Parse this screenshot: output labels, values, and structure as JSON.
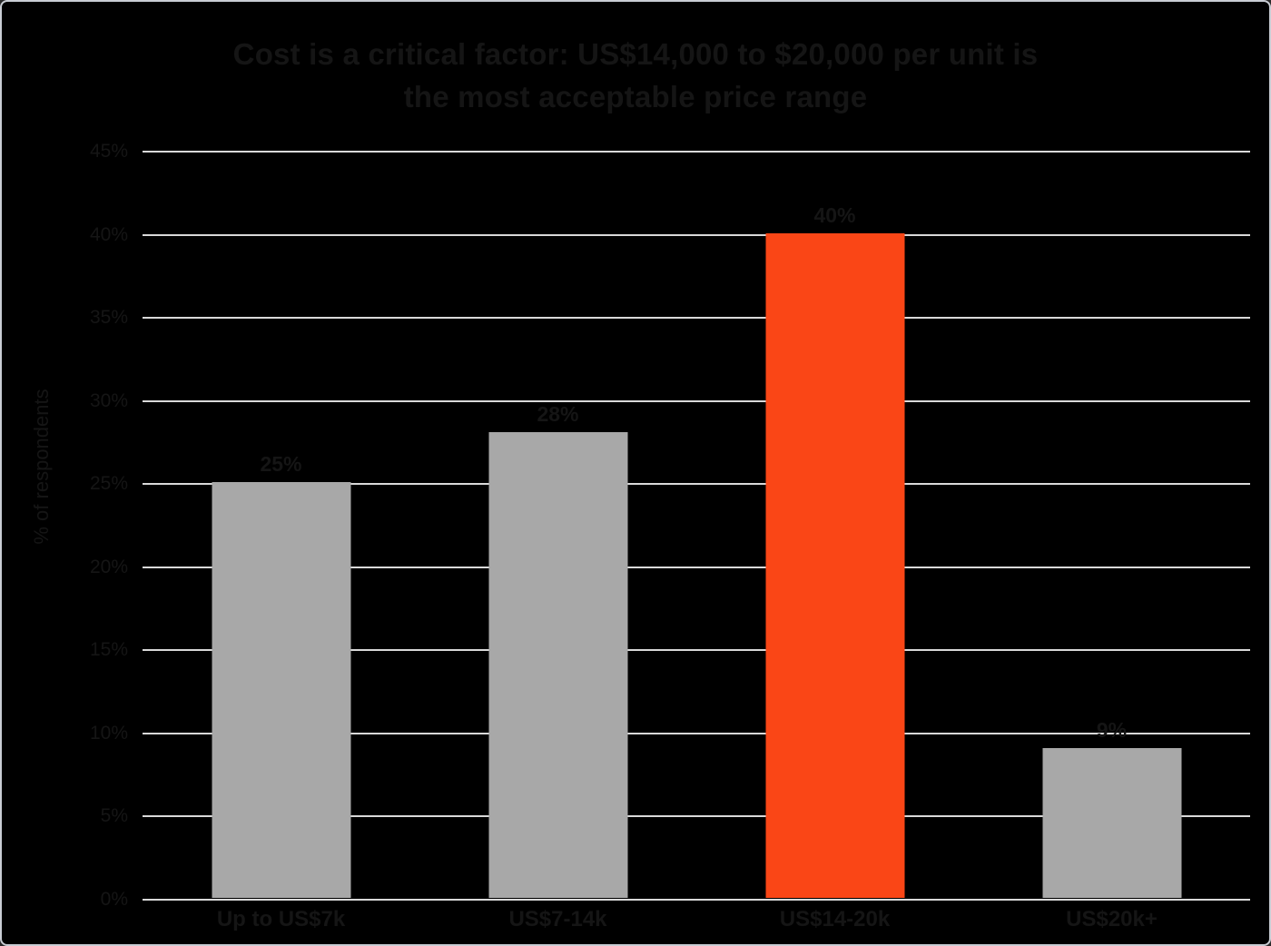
{
  "chart": {
    "title_line1": "Cost is a critical factor: US$14,000 to $20,000 per unit is",
    "title_line2": "the most acceptable price range",
    "y_axis_title": "% of respondents"
  },
  "chart_data": {
    "type": "bar",
    "title": "Cost is a critical factor: US$14,000 to $20,000 per unit is the most acceptable price range",
    "categories": [
      "Up to US$7k",
      "US$7-14k",
      "US$14-20k",
      "US$20k+"
    ],
    "values": [
      25,
      28,
      40,
      9
    ],
    "value_labels": [
      "25%",
      "28%",
      "40%",
      "9%"
    ],
    "xlabel": "",
    "ylabel": "% of respondents",
    "ylim": [
      0,
      45
    ],
    "ytick_step": 5,
    "ytick_labels": [
      "0%",
      "5%",
      "10%",
      "15%",
      "20%",
      "25%",
      "30%",
      "35%",
      "40%",
      "45%"
    ],
    "grid": true,
    "legend": "none",
    "highlight_index": 2,
    "colors": {
      "background": "#000000",
      "bar_default": "#a8a8a8",
      "bar_highlight": "#fa4616",
      "gridline": "#d9d9d9",
      "text": "#151515",
      "canvas_border": "#c9cdd4"
    }
  }
}
